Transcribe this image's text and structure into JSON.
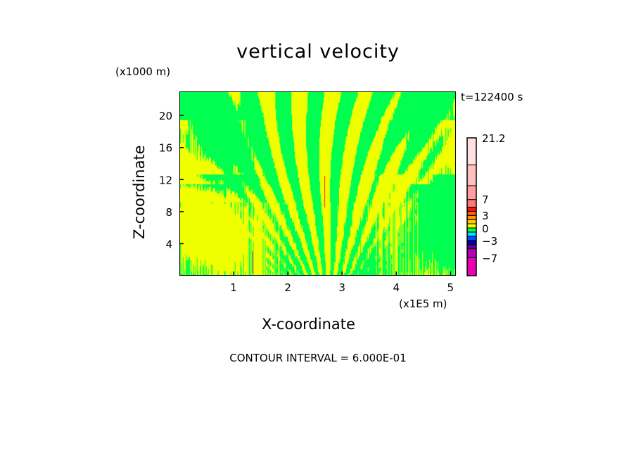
{
  "chart_data": {
    "type": "heatmap",
    "title": "vertical velocity",
    "xlabel": "X-coordinate",
    "ylabel": "Z-coordinate",
    "x_unit": "(x1E5 m)",
    "y_unit": "(x1000 m)",
    "time_label": "t=122400 s",
    "footer": "CONTOUR INTERVAL = 6.000E-01",
    "xlim": [
      0,
      5.1
    ],
    "ylim": [
      0,
      23
    ],
    "xticks": [
      {
        "v": 1,
        "label": "1"
      },
      {
        "v": 2,
        "label": "2"
      },
      {
        "v": 3,
        "label": "3"
      },
      {
        "v": 4,
        "label": "4"
      },
      {
        "v": 5,
        "label": "5"
      }
    ],
    "yticks": [
      {
        "v": 4,
        "label": "4"
      },
      {
        "v": 8,
        "label": "8"
      },
      {
        "v": 12,
        "label": "12"
      },
      {
        "v": 16,
        "label": "16"
      },
      {
        "v": 20,
        "label": "20"
      }
    ],
    "colorbar": {
      "labels": [
        {
          "label": "21.2",
          "pos": 1.0
        },
        {
          "label": "7",
          "pos": 0.555
        },
        {
          "label": "3",
          "pos": 0.44
        },
        {
          "label": "0",
          "pos": 0.345
        },
        {
          "label": "-3",
          "pos": 0.255
        },
        {
          "label": "-7",
          "pos": 0.13
        }
      ],
      "colors": [
        "#e800b0",
        "#b000b0",
        "#6000a0",
        "#0000b0",
        "#0050ff",
        "#00e0ff",
        "#00ff50",
        "#f0ff00",
        "#ffc800",
        "#ff9800",
        "#ff6000",
        "#ff1010",
        "#ff7878",
        "#ffa0a0",
        "#ffc0c0",
        "#ffe0e0"
      ],
      "fractions": [
        0.13,
        0.065,
        0.03,
        0.03,
        0.03,
        0.03,
        0.03,
        0.03,
        0.03,
        0.03,
        0.03,
        0.03,
        0.055,
        0.1,
        0.15,
        0.195
      ]
    },
    "dominant_colors": {
      "positive_small": "#f0ff00",
      "negative_small": "#00ff50"
    }
  }
}
